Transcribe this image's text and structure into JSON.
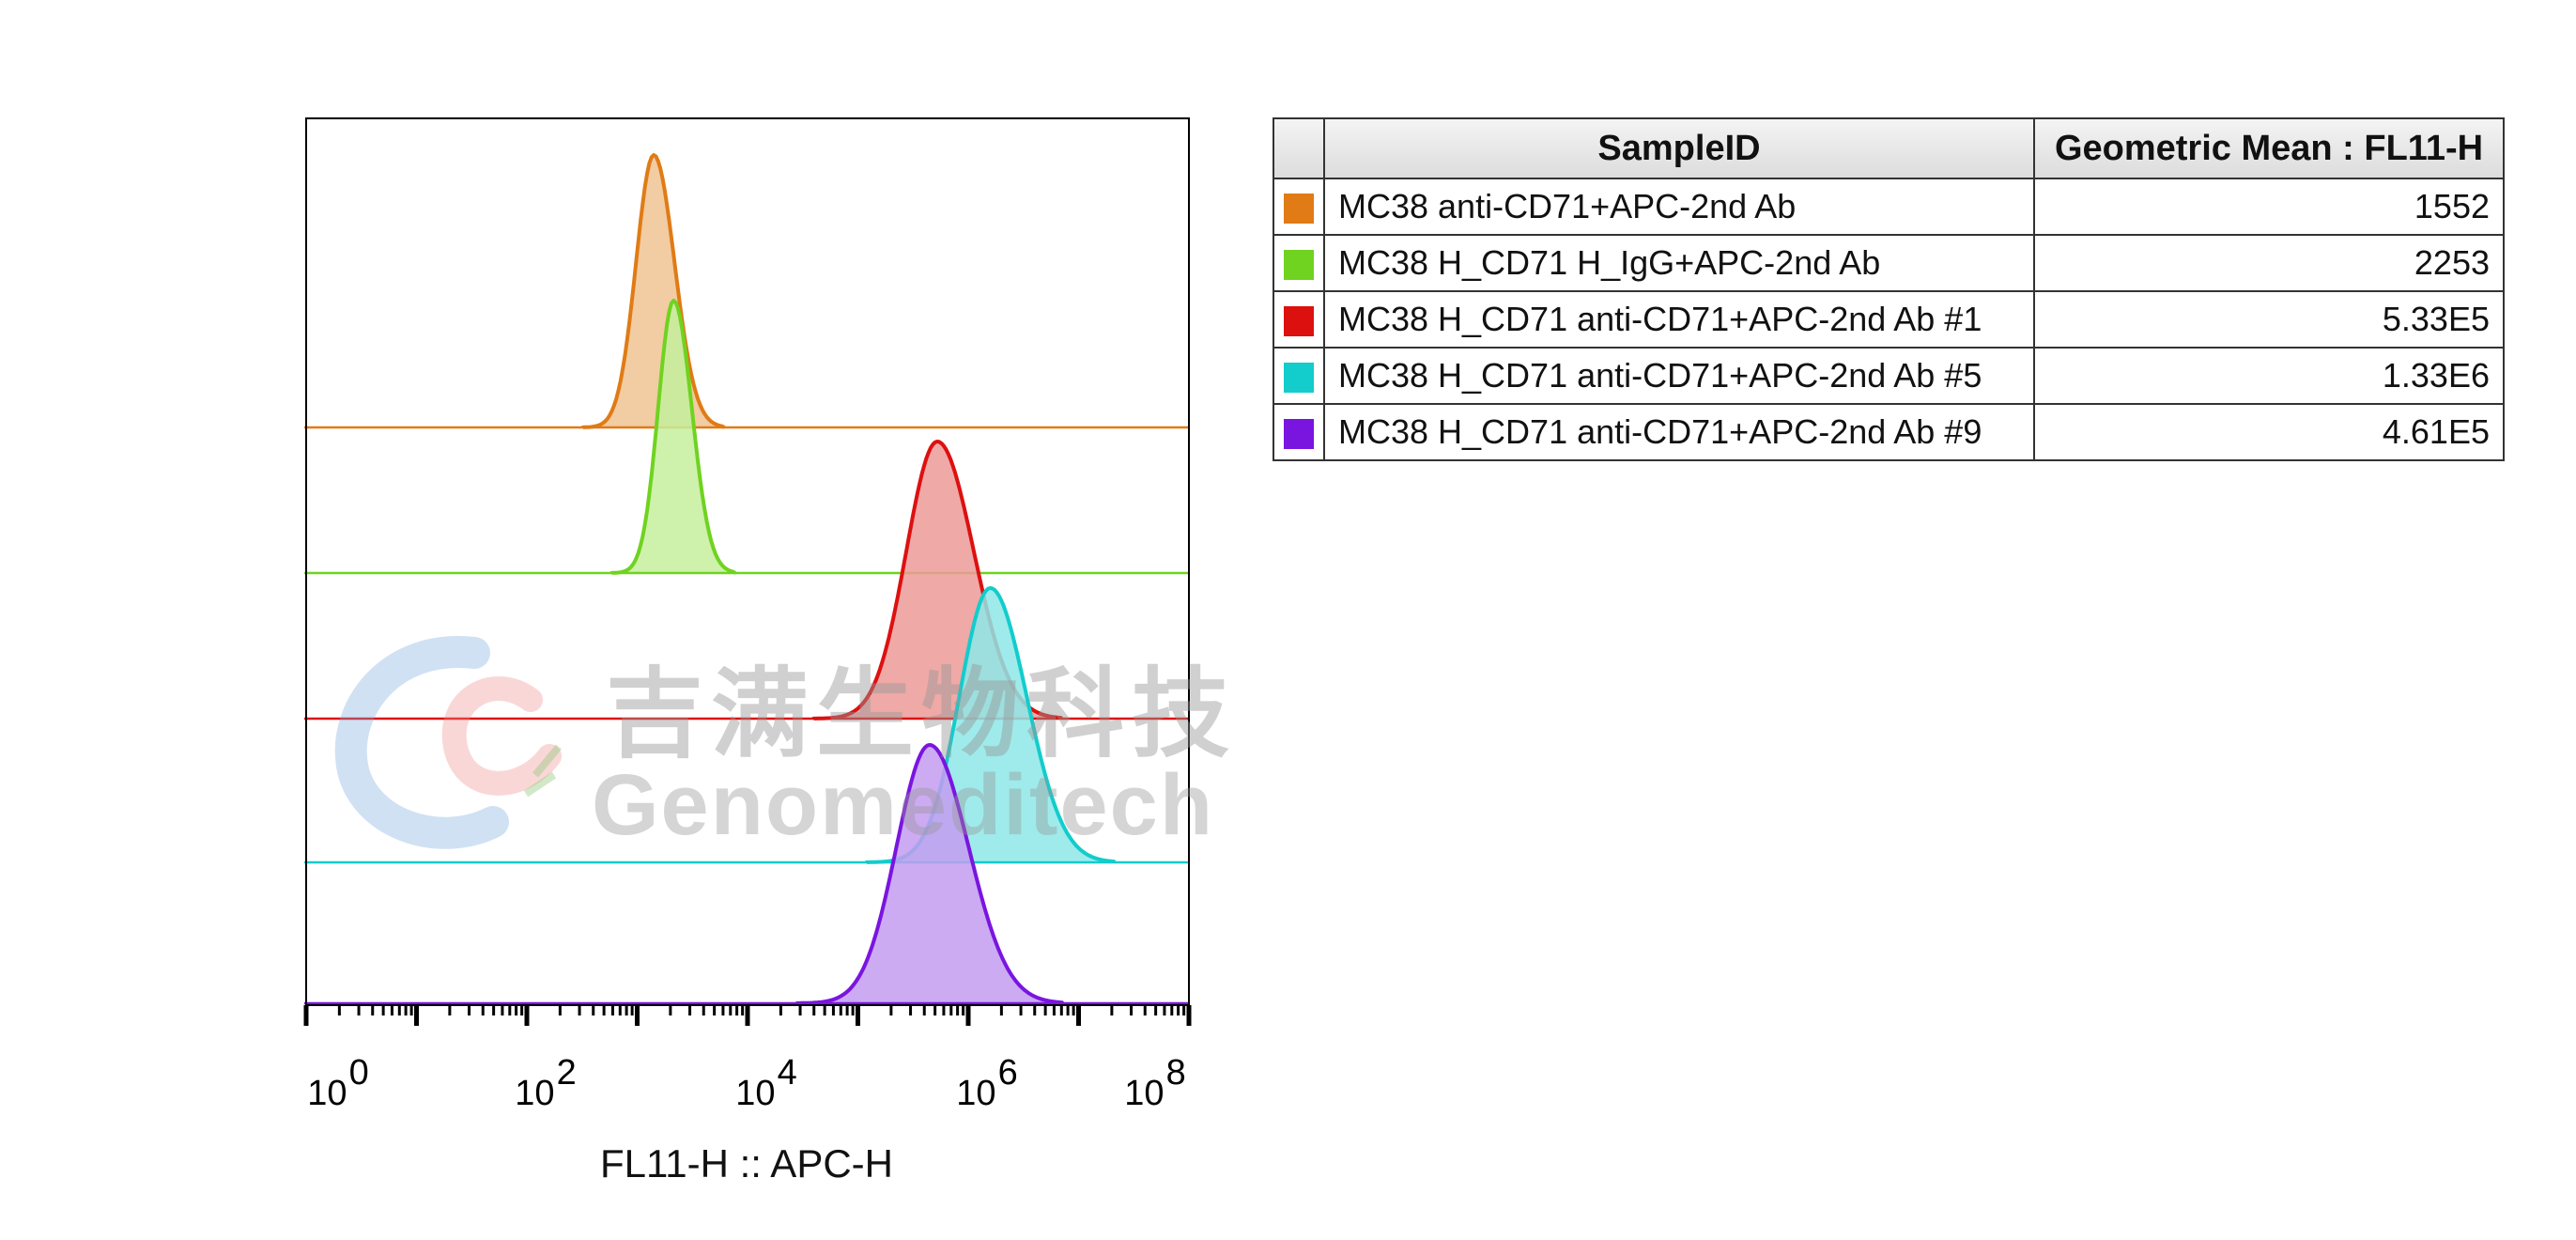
{
  "chart_data": {
    "type": "histogram-overlay",
    "xlabel": "FL11-H :: APC-H",
    "x_scale": "log",
    "xlim": [
      1,
      100000000
    ],
    "x_ticks": [
      {
        "base": "10",
        "exp": "0"
      },
      {
        "base": "10",
        "exp": "2"
      },
      {
        "base": "10",
        "exp": "4"
      },
      {
        "base": "10",
        "exp": "6"
      },
      {
        "base": "10",
        "exp": "8"
      }
    ],
    "series": [
      {
        "name": "MC38 anti-CD71+APC-2nd Ab",
        "color": "#e07b15",
        "fill": "#f0c392",
        "peak_log10": 3.15,
        "width": 0.16,
        "geometric_mean": "1552"
      },
      {
        "name": "MC38 H_CD71 H_IgG+APC-2nd Ab",
        "color": "#6fd320",
        "fill": "#c6ee9e",
        "peak_log10": 3.33,
        "width": 0.14,
        "geometric_mean": "2253"
      },
      {
        "name": "MC38 H_CD71 anti-CD71+APC-2nd Ab #1",
        "color": "#dd1010",
        "fill": "#ec9a98",
        "peak_log10": 5.72,
        "width": 0.28,
        "geometric_mean": "5.33E5"
      },
      {
        "name": "MC38 H_CD71 anti-CD71+APC-2nd Ab #5",
        "color": "#13cccc",
        "fill": "#8ee7e7",
        "peak_log10": 6.2,
        "width": 0.28,
        "geometric_mean": "1.33E6"
      },
      {
        "name": "MC38 H_CD71 anti-CD71+APC-2nd Ab #9",
        "color": "#7a15e0",
        "fill": "#c39cf0",
        "peak_log10": 5.65,
        "width": 0.3,
        "geometric_mean": "4.61E5"
      }
    ]
  },
  "table": {
    "header_sample": "SampleID",
    "header_value": "Geometric Mean : FL11-H"
  },
  "watermark": {
    "cn": "吉满生物科技",
    "en": "Genomeditech"
  }
}
